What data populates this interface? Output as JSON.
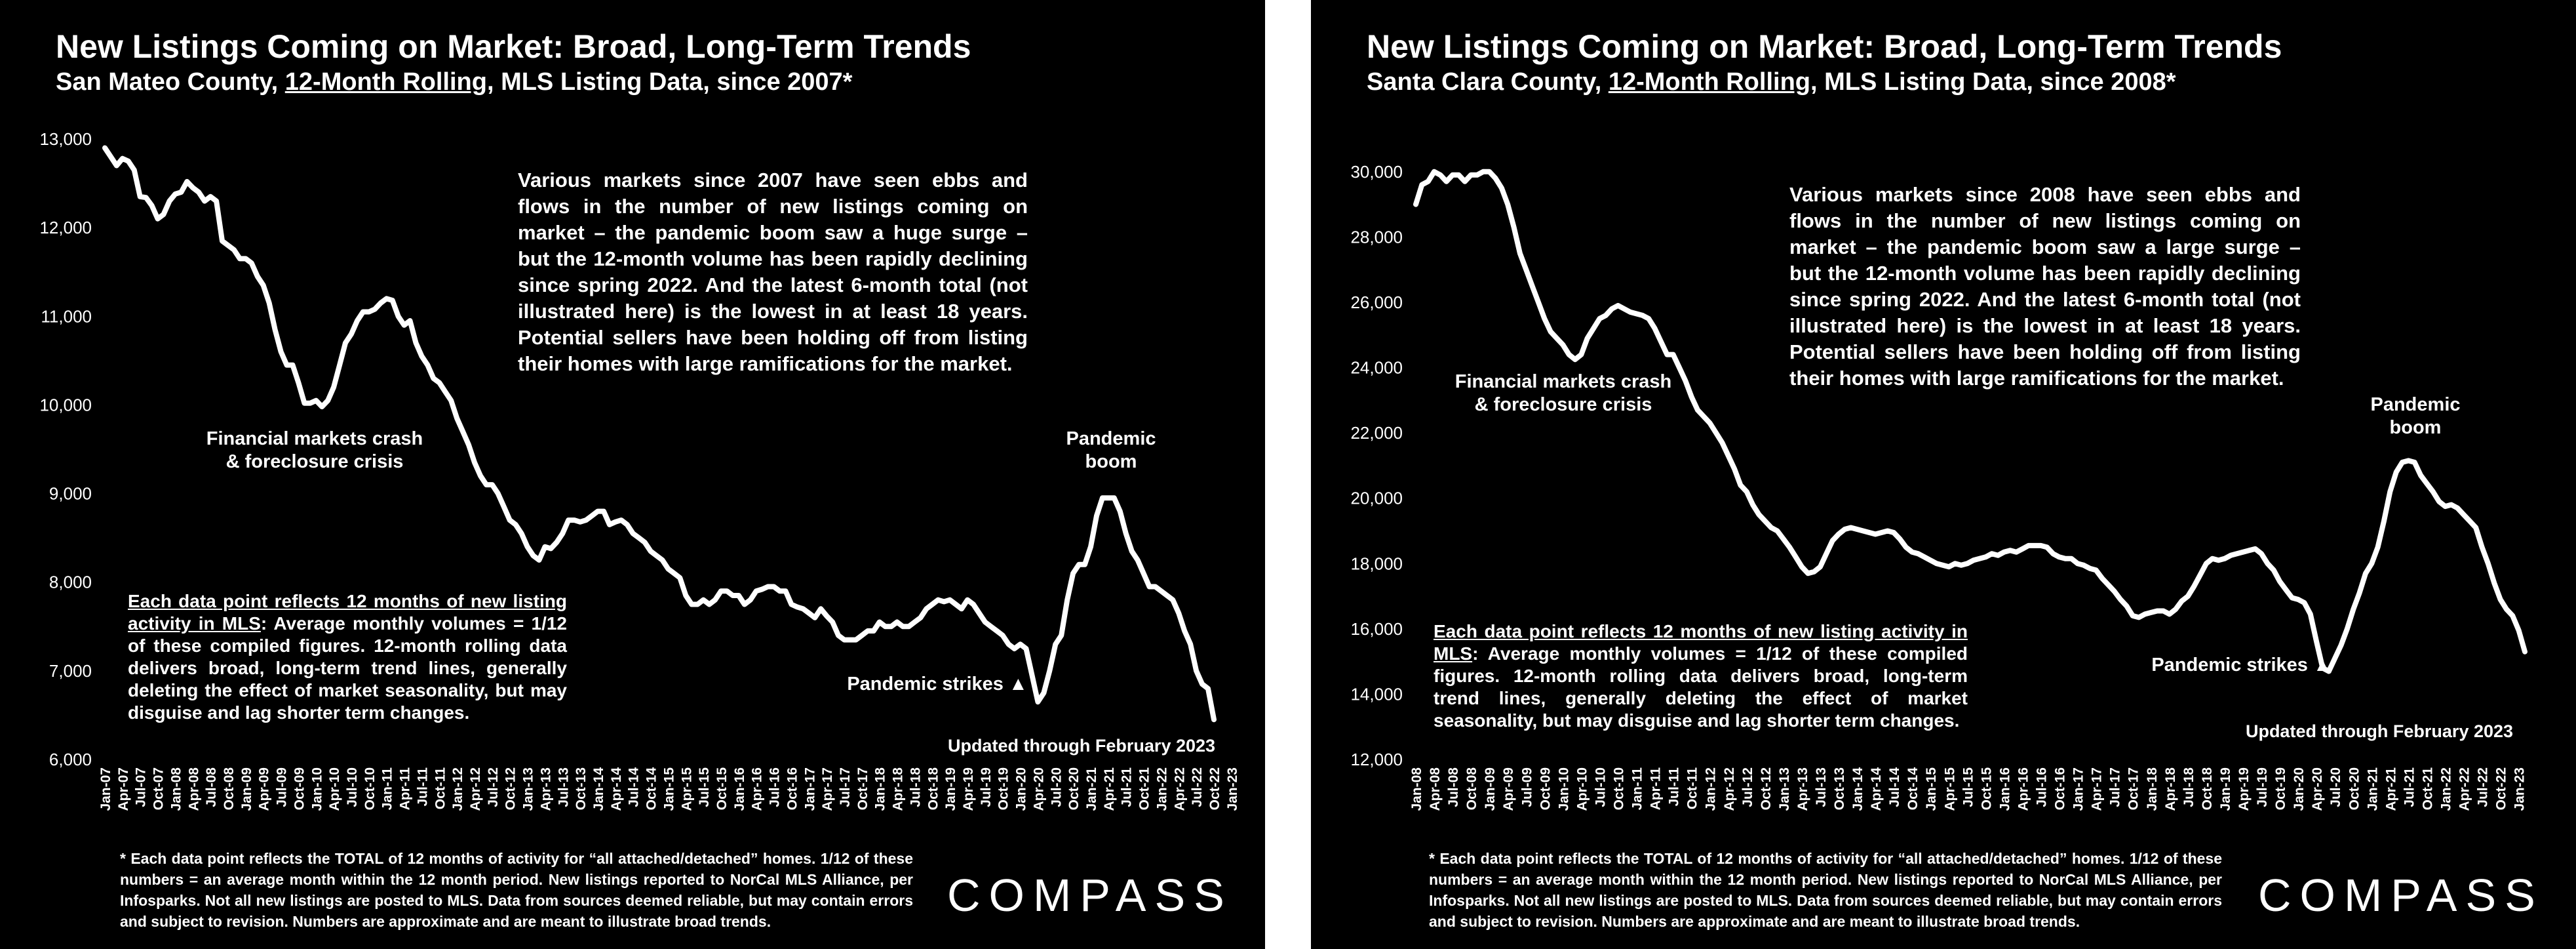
{
  "panels": [
    {
      "title": "New Listings Coming on Market: Broad, Long-Term Trends",
      "subtitle_pre": "San Mateo County, ",
      "subtitle_link": "12-Month Rolling",
      "subtitle_post": ", MLS Listing Data, since 2007*",
      "text_box": "Various markets since 2007 have seen ebbs and flows in the number of new listings coming on market – the pandemic boom saw a huge surge – but the 12-month volume has been rapidly declining since spring 2022. And the latest 6-month total (not illustrated here) is the lowest in at least 18 years. Potential sellers have been holding off from listing their homes with large ramifications for the market.",
      "note_lead": "Each data point reflects 12 months of new listing activity in MLS",
      "note_rest": ":  Average monthly volumes = 1/12 of these compiled figures. 12-month rolling data delivers broad, long-term trend lines, generally deleting the effect of market seasonality, but may disguise and lag shorter term changes.",
      "label_crash": [
        "Financial markets crash",
        "& foreclosure crisis"
      ],
      "label_boom": [
        "Pandemic",
        "boom"
      ],
      "label_strikes": "Pandemic strikes ▲",
      "updated": "Updated through February 2023",
      "footnote": "* Each data point reflects the TOTAL of 12 months of activity for “all attached/detached” homes. 1/12 of these numbers = an average month within the 12 month period. New listings reported to NorCal MLS Alliance, per Infosparks. Not all new listings are posted to MLS. Data from sources deemed reliable, but may contain errors and subject to revision. Numbers are approximate and are meant to illustrate broad trends.",
      "logo": "COMPASS"
    },
    {
      "title": "New Listings Coming on Market: Broad, Long-Term Trends",
      "subtitle_pre": "Santa Clara County, ",
      "subtitle_link": "12-Month Rolling",
      "subtitle_post": ", MLS Listing Data, since 2008*",
      "text_box": "Various markets since 2008 have seen ebbs and flows in the number of new listings coming on market – the pandemic boom saw a large surge – but the 12-month volume has been rapidly declining since spring 2022. And the latest 6-month total (not illustrated here) is the lowest in at least 18 years. Potential sellers have been holding off from listing their homes with large ramifications for the market.",
      "note_lead": "Each data point reflects 12 months of new listing activity in MLS",
      "note_rest": ":  Average monthly volumes = 1/12 of these compiled figures. 12-month rolling data delivers broad, long-term trend lines, generally deleting the effect of market seasonality, but may disguise and lag shorter term changes.",
      "label_crash": [
        "Financial markets crash",
        "& foreclosure crisis"
      ],
      "label_boom": [
        "Pandemic",
        "boom"
      ],
      "label_strikes": "Pandemic strikes ▲",
      "updated": "Updated through February 2023",
      "footnote": "* Each data point reflects the TOTAL of 12 months of activity for “all attached/detached” homes. 1/12 of these numbers = an average month within the 12 month period. New listings reported to NorCal MLS Alliance, per Infosparks. Not all new listings are posted to MLS. Data from sources deemed reliable, but may contain errors and subject to revision. Numbers are approximate and are meant to illustrate broad trends.",
      "logo": "COMPASS"
    }
  ],
  "chart_data": [
    {
      "type": "line",
      "title": "New Listings Coming on Market: Broad, Long-Term Trends",
      "subtitle": "San Mateo County, 12-Month Rolling, MLS Listing Data, since 2007*",
      "xlabel": "",
      "ylabel": "",
      "ylim": [
        6000,
        13000
      ],
      "yticks": [
        6000,
        7000,
        8000,
        9000,
        10000,
        11000,
        12000,
        13000
      ],
      "ytick_labels": [
        "6,000",
        "7,000",
        "8,000",
        "9,000",
        "10,000",
        "11,000",
        "12,000",
        "13,000"
      ],
      "x_start": "Jan-07",
      "x_end": "Feb-23",
      "x_tick_labels": [
        "Jan-07",
        "Apr-07",
        "Jul-07",
        "Oct-07",
        "Jan-08",
        "Apr-08",
        "Jul-08",
        "Oct-08",
        "Jan-09",
        "Apr-09",
        "Jul-09",
        "Oct-09",
        "Jan-10",
        "Apr-10",
        "Jul-10",
        "Oct-10",
        "Jan-11",
        "Apr-11",
        "Jul-11",
        "Oct-11",
        "Jan-12",
        "Apr-12",
        "Jul-12",
        "Oct-12",
        "Jan-13",
        "Apr-13",
        "Jul-13",
        "Oct-13",
        "Jan-14",
        "Apr-14",
        "Jul-14",
        "Oct-14",
        "Jan-15",
        "Apr-15",
        "Jul-15",
        "Oct-15",
        "Jan-16",
        "Apr-16",
        "Jul-16",
        "Oct-16",
        "Jan-17",
        "Apr-17",
        "Jul-17",
        "Oct-17",
        "Jan-18",
        "Apr-18",
        "Jul-18",
        "Oct-18",
        "Jan-19",
        "Apr-19",
        "Jul-19",
        "Oct-19",
        "Jan-20",
        "Apr-20",
        "Jul-20",
        "Oct-20",
        "Jan-21",
        "Apr-21",
        "Jul-21",
        "Oct-21",
        "Jan-22",
        "Apr-22",
        "Jul-22",
        "Oct-22",
        "Jan-23"
      ],
      "grid": false,
      "line_color": "#ffffff",
      "series": [
        {
          "values": [
            12900,
            12800,
            12700,
            12780,
            12750,
            12650,
            12350,
            12340,
            12250,
            12100,
            12150,
            12300,
            12380,
            12400,
            12520,
            12450,
            12400,
            12300,
            12350,
            12300,
            11850,
            11800,
            11750,
            11650,
            11650,
            11600,
            11450,
            11350,
            11150,
            10850,
            10600,
            10450,
            10450,
            10250,
            10020,
            10020,
            10050,
            9980,
            10050,
            10200,
            10450,
            10700,
            10800,
            10950,
            11050,
            11050,
            11080,
            11150,
            11200,
            11180,
            11000,
            10900,
            10950,
            10700,
            10550,
            10450,
            10300,
            10250,
            10150,
            10050,
            9850,
            9700,
            9550,
            9350,
            9200,
            9100,
            9100,
            9000,
            8850,
            8700,
            8650,
            8550,
            8400,
            8300,
            8250,
            8400,
            8380,
            8450,
            8550,
            8700,
            8700,
            8680,
            8700,
            8750,
            8800,
            8800,
            8650,
            8680,
            8700,
            8650,
            8550,
            8500,
            8450,
            8350,
            8300,
            8250,
            8150,
            8100,
            8050,
            7850,
            7750,
            7750,
            7800,
            7750,
            7800,
            7900,
            7900,
            7850,
            7850,
            7750,
            7800,
            7900,
            7920,
            7950,
            7950,
            7900,
            7900,
            7750,
            7720,
            7700,
            7650,
            7600,
            7700,
            7620,
            7550,
            7400,
            7350,
            7350,
            7350,
            7400,
            7450,
            7450,
            7550,
            7500,
            7500,
            7550,
            7500,
            7500,
            7550,
            7600,
            7700,
            7750,
            7800,
            7780,
            7800,
            7750,
            7700,
            7800,
            7750,
            7650,
            7550,
            7500,
            7450,
            7400,
            7300,
            7250,
            7300,
            7250,
            6950,
            6650,
            6750,
            7000,
            7300,
            7400,
            7800,
            8100,
            8200,
            8200,
            8400,
            8750,
            8950,
            8950,
            8950,
            8800,
            8550,
            8350,
            8250,
            8100,
            7950,
            7950,
            7900,
            7850,
            7800,
            7650,
            7450,
            7300,
            7000,
            6850,
            6800,
            6450
          ]
        }
      ]
    },
    {
      "type": "line",
      "title": "New Listings Coming on Market: Broad, Long-Term Trends",
      "subtitle": "Santa Clara County, 12-Month Rolling, MLS Listing Data, since 2008*",
      "xlabel": "",
      "ylabel": "",
      "ylim": [
        12000,
        31000
      ],
      "yticks": [
        12000,
        14000,
        16000,
        18000,
        20000,
        22000,
        24000,
        26000,
        28000,
        30000
      ],
      "ytick_labels": [
        "12,000",
        "14,000",
        "16,000",
        "18,000",
        "20,000",
        "22,000",
        "24,000",
        "26,000",
        "28,000",
        "30,000"
      ],
      "x_start": "Jan-08",
      "x_end": "Feb-23",
      "x_tick_labels": [
        "Jan-08",
        "Apr-08",
        "Jul-08",
        "Oct-08",
        "Jan-09",
        "Apr-09",
        "Jul-09",
        "Oct-09",
        "Jan-10",
        "Apr-10",
        "Jul-10",
        "Oct-10",
        "Jan-11",
        "Apr-11",
        "Jul-11",
        "Oct-11",
        "Jan-12",
        "Apr-12",
        "Jul-12",
        "Oct-12",
        "Jan-13",
        "Apr-13",
        "Jul-13",
        "Oct-13",
        "Jan-14",
        "Apr-14",
        "Jul-14",
        "Oct-14",
        "Jan-15",
        "Apr-15",
        "Jul-15",
        "Oct-15",
        "Jan-16",
        "Apr-16",
        "Jul-16",
        "Oct-16",
        "Jan-17",
        "Apr-17",
        "Jul-17",
        "Oct-17",
        "Jan-18",
        "Apr-18",
        "Jul-18",
        "Oct-18",
        "Jan-19",
        "Apr-19",
        "Jul-19",
        "Oct-19",
        "Jan-20",
        "Apr-20",
        "Jul-20",
        "Oct-20",
        "Jan-21",
        "Apr-21",
        "Jul-21",
        "Oct-21",
        "Jan-22",
        "Apr-22",
        "Jul-22",
        "Oct-22",
        "Jan-23"
      ],
      "grid": false,
      "line_color": "#ffffff",
      "series": [
        {
          "values": [
            29000,
            29600,
            29700,
            30000,
            29900,
            29700,
            29900,
            29900,
            29700,
            29900,
            29900,
            30000,
            30000,
            29800,
            29500,
            29000,
            28300,
            27500,
            27000,
            26500,
            26000,
            25500,
            25100,
            24900,
            24700,
            24400,
            24250,
            24400,
            24900,
            25200,
            25500,
            25600,
            25800,
            25900,
            25800,
            25700,
            25650,
            25600,
            25500,
            25200,
            24800,
            24400,
            24400,
            24000,
            23600,
            23100,
            22700,
            22500,
            22300,
            22000,
            21700,
            21300,
            20900,
            20400,
            20200,
            19800,
            19500,
            19300,
            19100,
            19000,
            18750,
            18500,
            18200,
            17900,
            17700,
            17750,
            17900,
            18300,
            18700,
            18900,
            19050,
            19100,
            19050,
            19000,
            18950,
            18900,
            18950,
            19000,
            18950,
            18750,
            18500,
            18350,
            18300,
            18200,
            18100,
            18000,
            17950,
            17900,
            18000,
            17950,
            18000,
            18100,
            18150,
            18200,
            18300,
            18250,
            18350,
            18400,
            18350,
            18450,
            18550,
            18550,
            18550,
            18500,
            18300,
            18200,
            18150,
            18150,
            18000,
            17950,
            17850,
            17800,
            17550,
            17350,
            17150,
            16900,
            16700,
            16400,
            16350,
            16450,
            16500,
            16550,
            16550,
            16450,
            16600,
            16850,
            17000,
            17300,
            17650,
            18000,
            18150,
            18100,
            18150,
            18250,
            18300,
            18350,
            18400,
            18450,
            18300,
            18000,
            17800,
            17450,
            17200,
            16950,
            16900,
            16800,
            16450,
            15600,
            14800,
            14700,
            15100,
            15500,
            16000,
            16600,
            17100,
            17700,
            18000,
            18500,
            19300,
            20200,
            20800,
            21100,
            21150,
            21100,
            20700,
            20450,
            20200,
            19900,
            19750,
            19800,
            19700,
            19500,
            19300,
            19100,
            18500,
            18000,
            17400,
            16900,
            16600,
            16400,
            15950,
            15300
          ]
        }
      ]
    }
  ]
}
